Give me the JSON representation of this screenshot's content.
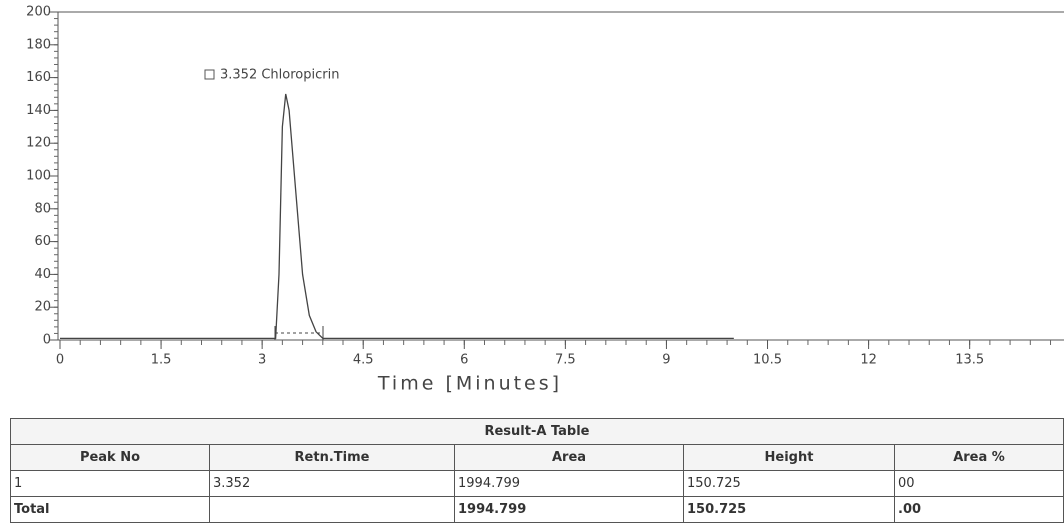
{
  "chart_data": {
    "type": "line",
    "x": [
      0,
      3.2,
      3.25,
      3.3,
      3.35,
      3.4,
      3.5,
      3.6,
      3.7,
      3.8,
      3.9,
      4.0,
      10
    ],
    "series": [
      {
        "color": "#444",
        "values": [
          1,
          1,
          40,
          130,
          150,
          140,
          90,
          40,
          15,
          5,
          1,
          1,
          1
        ]
      }
    ],
    "xlim": [
      0,
      14.9
    ],
    "xticks": [
      0,
      1.5,
      3,
      4.5,
      6,
      7.5,
      9,
      10.5,
      12,
      13.5
    ],
    "ylim": [
      0,
      200
    ],
    "yticks": [
      0,
      20,
      40,
      60,
      80,
      100,
      120,
      140,
      160,
      180,
      200
    ],
    "xlabel": "Time  [Minutes]",
    "annotations": [
      {
        "text": "3.352 Chloropicrin",
        "x": 3.352
      }
    ]
  },
  "table": {
    "title": "Result-A Table",
    "header": [
      "Peak No",
      "Retn.Time",
      "Area",
      "Height",
      "Area %"
    ],
    "rows": [
      [
        "1",
        "3.352",
        "1994.799",
        "150.725",
        "00"
      ]
    ],
    "total": {
      "label": "Total",
      "area": "1994.799",
      "height": "150.725",
      "area_pct": ".00"
    }
  }
}
